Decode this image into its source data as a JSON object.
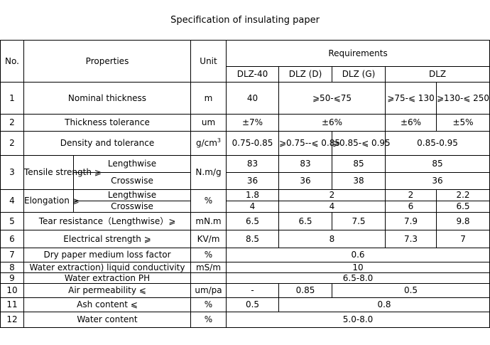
{
  "title": "Specification of insulating paper",
  "header": {
    "no": "No.",
    "properties": "Properties",
    "unit": "Unit",
    "requirements": "Requirements",
    "grades": [
      "DLZ-40",
      "DLZ (D)",
      "DLZ (G)",
      "DLZ"
    ]
  },
  "rows": {
    "r1": {
      "no": "1",
      "label": "Nominal thickness",
      "unit": "m",
      "dlz40": "40",
      "d_g": "⩾50-⩽75",
      "dlz_a": "⩾75-⩽ 130",
      "dlz_b": "⩾130-⩽ 250"
    },
    "r2": {
      "no": "2",
      "label": "Thickness tolerance",
      "unit": "um",
      "dlz40": "±7%",
      "d_g": "±6%",
      "dlz_a": "±6%",
      "dlz_b": "±5%"
    },
    "r3": {
      "no": "2",
      "label": "Density and  tolerance",
      "unit": "g/cm",
      "unit_sup": "3",
      "dlz40": "0.75-0.85",
      "d": "⩾0.75--⩽ 0.85",
      "g": "⩾0.85-⩽ 0.95",
      "dlz": "0.85-0.95"
    },
    "r4": {
      "no": "3",
      "label": "Tensile strength ⩾",
      "sub1": "Lengthwise",
      "sub2": "Crosswise",
      "unit": "N.m/g",
      "len": {
        "dlz40": "83",
        "d": "83",
        "g": "85",
        "dlz": "85"
      },
      "cross": {
        "dlz40": "36",
        "d": "36",
        "g": "38",
        "dlz": "36"
      }
    },
    "r5": {
      "no": "4",
      "label": "Elongation ⩾",
      "sub1": "Lengthwise",
      "sub2": "Crosswise",
      "unit": "%",
      "len": {
        "dlz40": "1.8",
        "d_g": "2",
        "dlz_a": "2",
        "dlz_b": "2.2"
      },
      "cross": {
        "dlz40": "4",
        "d_g": "4",
        "dlz_a": "6",
        "dlz_b": "6.5"
      }
    },
    "r6": {
      "no": "5",
      "label": "Tear resistance（Lengthwise）⩾",
      "unit": "mN.m",
      "dlz40": "6.5",
      "d": "6.5",
      "g": "7.5",
      "dlz_a": "7.9",
      "dlz_b": "9.8"
    },
    "r7": {
      "no": "6",
      "label": "Electrical strength ⩾",
      "unit": "KV/m",
      "dlz40": "8.5",
      "d_g": "8",
      "dlz_a": "7.3",
      "dlz_b": "7"
    },
    "r8": {
      "no": "7",
      "label": "Dry paper medium loss factor",
      "unit": "%",
      "all": "0.6"
    },
    "r9": {
      "no": "8",
      "label": "Water extraction) liquid conductivity",
      "unit": "mS/m",
      "all": "10"
    },
    "r10": {
      "no": "9",
      "label": "Water extraction PH",
      "unit": "",
      "all": "6.5-8.0"
    },
    "r11": {
      "no": "10",
      "label": "Air permeability ⩽",
      "unit": "um/pa",
      "dlz40": "-",
      "d": "0.85",
      "rest": "0.5"
    },
    "r12": {
      "no": "11",
      "label": "Ash content ⩽",
      "unit": "%",
      "dlz40": "0.5",
      "rest": "0.8"
    },
    "r13": {
      "no": "12",
      "label": "Water content",
      "unit": "%",
      "all": "5.0-8.0"
    }
  }
}
